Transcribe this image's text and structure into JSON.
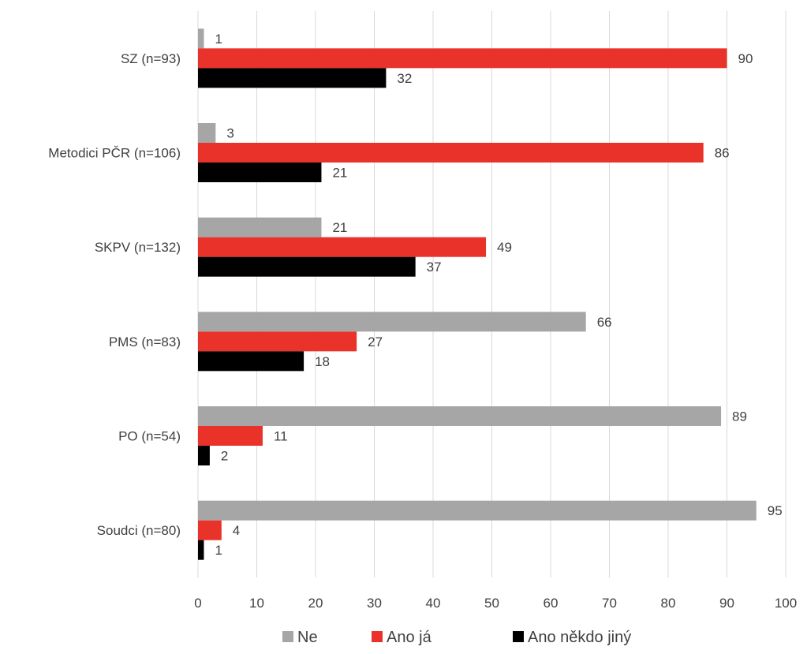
{
  "chart_data": {
    "type": "bar",
    "orientation": "horizontal",
    "categories": [
      "SZ (n=93)",
      "Metodici PČR (n=106)",
      "SKPV (n=132)",
      "PMS (n=83)",
      "PO (n=54)",
      "Soudci (n=80)"
    ],
    "series": [
      {
        "name": "Ne",
        "color": "#a6a6a6",
        "values": [
          1,
          3,
          21,
          66,
          89,
          95
        ]
      },
      {
        "name": "Ano já",
        "color": "#e8322a",
        "values": [
          90,
          86,
          49,
          27,
          11,
          4
        ]
      },
      {
        "name": "Ano někdo jiný",
        "color": "#000000",
        "values": [
          32,
          21,
          37,
          18,
          2,
          1
        ]
      }
    ],
    "xlim": [
      0,
      100
    ],
    "xticks": [
      0,
      10,
      20,
      30,
      40,
      50,
      60,
      70,
      80,
      90,
      100
    ],
    "grid": "vertical",
    "legend_position": "bottom",
    "data_labels": true
  }
}
